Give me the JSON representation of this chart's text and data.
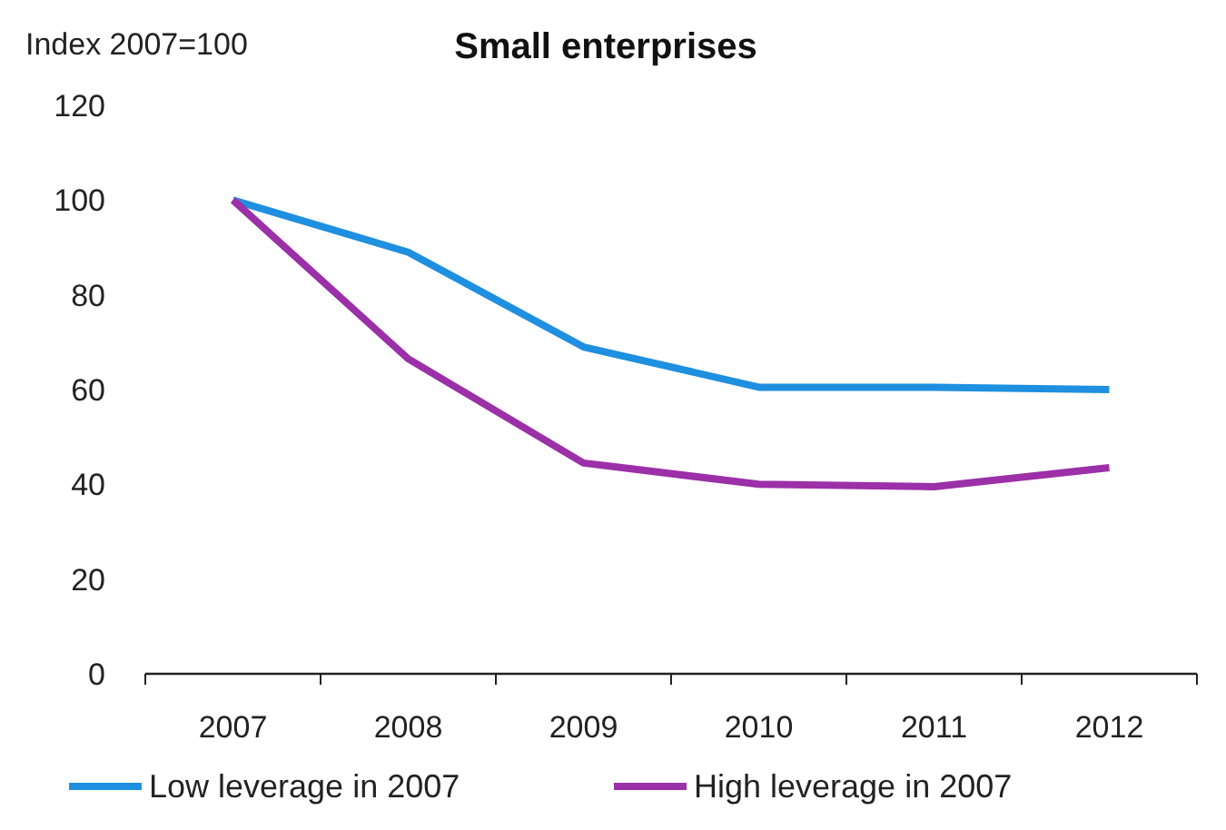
{
  "chart_data": {
    "type": "line",
    "title": "Small enterprises",
    "ylabel": "Index 2007=100",
    "categories": [
      "2007",
      "2008",
      "2009",
      "2010",
      "2011",
      "2012"
    ],
    "series": [
      {
        "name": "Low leverage in 2007",
        "color": "#1f8fe0",
        "values": [
          100,
          89,
          69,
          60.5,
          60.5,
          60
        ]
      },
      {
        "name": "High leverage in 2007",
        "color": "#9b30a8",
        "values": [
          100,
          66.5,
          44.5,
          40,
          39.5,
          43.5
        ]
      }
    ],
    "ylim": [
      0,
      120
    ],
    "yticks": [
      0,
      20,
      40,
      60,
      80,
      100,
      120
    ],
    "grid": false,
    "legend": "bottom",
    "marker": "none",
    "line_style": "solid"
  }
}
